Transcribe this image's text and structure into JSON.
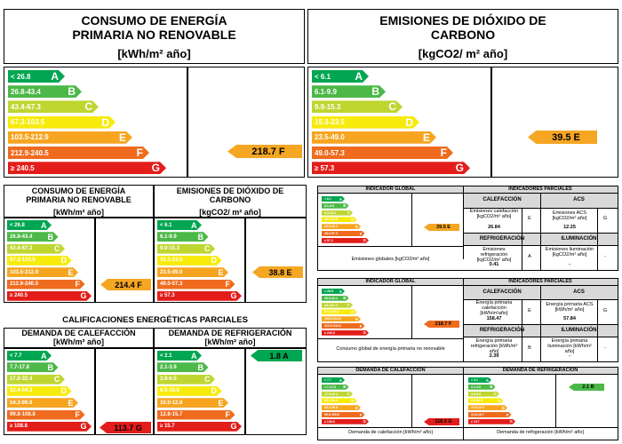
{
  "colors": {
    "A": "#00a651",
    "B": "#4cb848",
    "C": "#bed630",
    "D": "#f7eb0c",
    "E": "#f7a520",
    "F": "#ef6b1e",
    "G": "#e31d1a",
    "indicator": "#f5a623",
    "indicator_green": "#00a651"
  },
  "top_left": {
    "title": "CONSUMO DE ENERGÍA\nPRIMARIA NO RENOVABLE",
    "unit": "[kWh/m² año]",
    "bars": [
      {
        "range": "< 26.8",
        "letter": "A"
      },
      {
        "range": "26.8-43.4",
        "letter": "B"
      },
      {
        "range": "43.4-67.3",
        "letter": "C"
      },
      {
        "range": "67.3-103.5",
        "letter": "D"
      },
      {
        "range": "103.5-212.9",
        "letter": "E"
      },
      {
        "range": "212.9-240.5",
        "letter": "F"
      },
      {
        "range": "≥ 240.5",
        "letter": "G"
      }
    ],
    "indicator": "218.7 F"
  },
  "top_right": {
    "title": "EMISIONES DE DIÓXIDO DE\nCARBONO",
    "unit": "[kgCO2/ m² año]",
    "bars": [
      {
        "range": "< 6.1",
        "letter": "A"
      },
      {
        "range": "6.1-9.9",
        "letter": "B"
      },
      {
        "range": "9.9-15.3",
        "letter": "C"
      },
      {
        "range": "15.3-23.5",
        "letter": "D"
      },
      {
        "range": "23.5-49.0",
        "letter": "E"
      },
      {
        "range": "49.0-57.3",
        "letter": "F"
      },
      {
        "range": "≥ 57.3",
        "letter": "G"
      }
    ],
    "indicator": "39.5 E"
  },
  "mid_left": {
    "title": "CONSUMO DE ENERGÍA\nPRIMARIA NO RENOVABLE",
    "unit": "[kWh/m² año]",
    "bars": [
      {
        "range": "< 26.8",
        "letter": "A"
      },
      {
        "range": "26.8-43.4",
        "letter": "B"
      },
      {
        "range": "43.4-67.3",
        "letter": "C"
      },
      {
        "range": "67.3-103.5",
        "letter": "D"
      },
      {
        "range": "103.5-212.9",
        "letter": "E"
      },
      {
        "range": "212.9-240.5",
        "letter": "F"
      },
      {
        "range": "≥ 240.5",
        "letter": "G"
      }
    ],
    "indicator": "214.4 F"
  },
  "mid_right": {
    "title": "EMISIONES DE DIÓXIDO DE\nCARBONO",
    "unit": "[kgCO2/ m² año]",
    "bars": [
      {
        "range": "< 6.1",
        "letter": "A"
      },
      {
        "range": "6.1-9.9",
        "letter": "B"
      },
      {
        "range": "9.9-15.3",
        "letter": "C"
      },
      {
        "range": "15.3-23.5",
        "letter": "D"
      },
      {
        "range": "23.5-49.0",
        "letter": "E"
      },
      {
        "range": "49.0-57.3",
        "letter": "F"
      },
      {
        "range": "≥ 57.3",
        "letter": "G"
      }
    ],
    "indicator": "38.8 E"
  },
  "partial": {
    "title": "CALIFICACIONES ENERGÉTICAS PARCIALES",
    "heating": {
      "title": "DEMANDA DE CALEFACCIÓN",
      "unit": "[kWh/m² año]",
      "bars": [
        {
          "range": "< 7.7",
          "letter": "A"
        },
        {
          "range": "7.7-17.8",
          "letter": "B"
        },
        {
          "range": "17.8-32.4",
          "letter": "C"
        },
        {
          "range": "32.4-54.3",
          "letter": "D"
        },
        {
          "range": "54.3-99.8",
          "letter": "E"
        },
        {
          "range": "99.8-108.8",
          "letter": "F"
        },
        {
          "range": "≥ 108.8",
          "letter": "G"
        }
      ],
      "indicator": "113.7 G"
    },
    "cooling": {
      "title": "DEMANDA DE REFRIGERACIÓN",
      "unit": "[kWh/m² año]",
      "bars": [
        {
          "range": "< 2.1",
          "letter": "A"
        },
        {
          "range": "2.1-3.9",
          "letter": "B"
        },
        {
          "range": "3.9-6.5",
          "letter": "C"
        },
        {
          "range": "6.5-10.5",
          "letter": "D"
        },
        {
          "range": "10.5-12.8",
          "letter": "E"
        },
        {
          "range": "12.8-15.7",
          "letter": "F"
        },
        {
          "range": "≥ 15.7",
          "letter": "G"
        }
      ],
      "indicator": "1.8 A"
    }
  },
  "small_emissions": {
    "global_label": "INDICADOR GLOBAL",
    "partial_label": "INDICADORES PARCIALES",
    "indicator": "39.5 E",
    "heat_label": "CALEFACCIÓN",
    "acs_label": "ACS",
    "heat_desc": "Emisiones calefacción [kgCO2/m² año]",
    "heat_value": "26.84",
    "heat_letter": "E",
    "acs_desc": "Emisiones ACS [kgCO2/m² año]",
    "acs_value": "12.25",
    "acs_letter": "G",
    "ref_label": "REFRIGERACIÓN",
    "ilum_label": "ILUMINACIÓN",
    "ref_desc": "Emisiones refrigeración [kgCO2/m² año]",
    "ref_value": "0.41",
    "ref_letter": "A",
    "ilum_desc": "Emisiones iluminación [kgCO2/m² año]",
    "ilum_value": "-",
    "ilum_letter": "-",
    "footer": "Emisiones globales [kgCO2/m² año]",
    "ranges": [
      "< 6.1",
      "6.1-9.9",
      "9.9-15.3",
      "15.3-23.5",
      "23.5-49.0",
      "49.0-57.3",
      "≥ 57.3"
    ]
  },
  "small_energy": {
    "global_label": "INDICADOR GLOBAL",
    "partial_label": "INDICADORES PARCIALES",
    "indicator": "218.7 F",
    "heat_label": "CALEFACCIÓN",
    "acs_label": "ACS",
    "heat_desc": "Energía primaria calefacción [kWh/m²año]",
    "heat_value": "158.47",
    "heat_letter": "E",
    "acs_desc": "Energía primaria ACS [kWh/m² año]",
    "acs_value": "57.84",
    "acs_letter": "G",
    "ref_label": "REFRIGERACIÓN",
    "ilum_label": "ILUMINACIÓN",
    "ref_desc": "Energía primaria refrigeración [kWh/m² año]",
    "ref_value": "2.39",
    "ref_letter": "B",
    "ilum_desc": "Energía primaria iluminación [kWh/m² año]",
    "ilum_value": "-",
    "ilum_letter": "-",
    "footer": "Consumo global de energía primaria no renovable",
    "ranges": [
      "< 26.8",
      "26.8-43.4",
      "43.4-67.3",
      "67.3-103.5",
      "103.5-212.9",
      "212.9-240.5",
      "≥ 240.5"
    ]
  },
  "small_demand": {
    "heat_title": "DEMANDA DE CALEFACCIÓN",
    "cool_title": "DEMANDA DE REFRIGERACIÓN",
    "heat_indicator": "118.0 G",
    "cool_indicator": "2.1 B",
    "heat_footer": "Demanda de calefacción [kWh/m² año]",
    "cool_footer": "Demanda de refrigeración [kWh/m² año]",
    "heat_ranges": [
      "< 7.7",
      "7.7-17.8",
      "17.8-32.4",
      "32.4-54.3",
      "54.3-99.8",
      "99.8-108.8",
      "≥ 108.8"
    ],
    "cool_ranges": [
      "< 2.1",
      "2.1-3.9",
      "3.9-6.5",
      "6.5-10.5",
      "10.5-12.8",
      "12.8-15.7",
      "≥ 15.7"
    ]
  }
}
